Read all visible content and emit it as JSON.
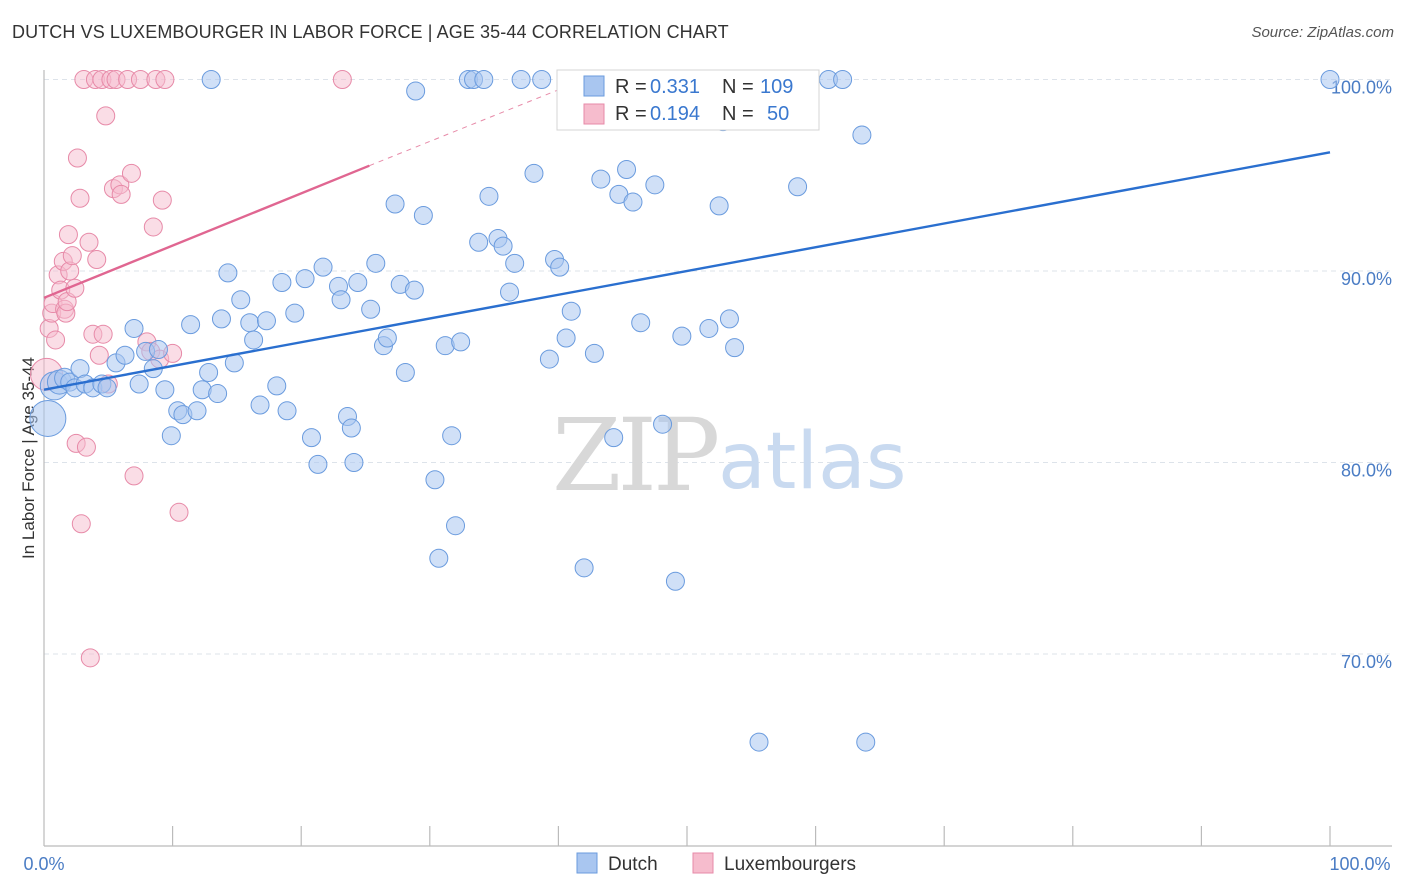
{
  "header": {
    "title": "DUTCH VS LUXEMBOURGER IN LABOR FORCE | AGE 35-44 CORRELATION CHART",
    "source": "Source: ZipAtlas.com"
  },
  "watermark": {
    "zip": "ZIP",
    "atlas": "atlas"
  },
  "colors": {
    "dutch_fill": "#a9c6f0",
    "dutch_stroke": "#6a9bde",
    "dutch_line": "#2a6fcf",
    "lux_fill": "#f6bccd",
    "lux_stroke": "#e78aa8",
    "lux_line": "#e06691",
    "grid": "#dde3ea",
    "axis": "#bbbbbb",
    "tick_text": "#4a7cc4"
  },
  "legend_box": {
    "rows": [
      {
        "r_label": "R =",
        "r_value": "0.331",
        "n_label": "N =",
        "n_value": "109"
      },
      {
        "r_label": "R =",
        "r_value": "0.194",
        "n_label": "N =",
        "n_value": "50"
      }
    ]
  },
  "bottom_legend": {
    "dutch": "Dutch",
    "lux": "Luxembourgers"
  },
  "chart_data": {
    "type": "scatter",
    "title": "DUTCH VS LUXEMBOURGER IN LABOR FORCE | AGE 35-44 CORRELATION CHART",
    "xlabel": "",
    "ylabel": "In Labor Force | Age 35-44",
    "xlim": [
      0,
      100
    ],
    "ylim": [
      61,
      101.5
    ],
    "x_tick_labels": [
      "0.0%",
      "100.0%"
    ],
    "y_ticks": [
      70,
      80,
      90,
      100
    ],
    "y_tick_labels": [
      "70.0%",
      "80.0%",
      "90.0%",
      "100.0%"
    ],
    "grid": true,
    "legend_position": "top-center",
    "series": [
      {
        "name": "Dutch",
        "r": 0.331,
        "n": 109,
        "trend": {
          "x": [
            0,
            100
          ],
          "y": [
            83.8,
            96.2
          ]
        },
        "points": [
          [
            0.3,
            82.3,
            18
          ],
          [
            0.8,
            84.0,
            14
          ],
          [
            1.2,
            84.2,
            12
          ],
          [
            1.6,
            84.4,
            10
          ],
          [
            2.0,
            84.2,
            9
          ],
          [
            2.4,
            83.9,
            9
          ],
          [
            2.8,
            84.9,
            9
          ],
          [
            3.2,
            84.1,
            9
          ],
          [
            3.8,
            83.9,
            9
          ],
          [
            4.5,
            84.1,
            9
          ],
          [
            4.9,
            83.9,
            9
          ],
          [
            5.6,
            85.2,
            9
          ],
          [
            6.3,
            85.6,
            9
          ],
          [
            7.0,
            87.0,
            9
          ],
          [
            7.4,
            84.1,
            9
          ],
          [
            7.9,
            85.8,
            9
          ],
          [
            8.5,
            84.9,
            9
          ],
          [
            8.9,
            85.9,
            9
          ],
          [
            9.4,
            83.8,
            9
          ],
          [
            9.9,
            81.4,
            9
          ],
          [
            10.4,
            82.7,
            9
          ],
          [
            10.8,
            82.5,
            9
          ],
          [
            11.4,
            87.2,
            9
          ],
          [
            11.9,
            82.7,
            9
          ],
          [
            12.3,
            83.8,
            9
          ],
          [
            12.8,
            84.7,
            9
          ],
          [
            13.5,
            83.6,
            9
          ],
          [
            13.8,
            87.5,
            9
          ],
          [
            14.3,
            89.9,
            9
          ],
          [
            14.8,
            85.2,
            9
          ],
          [
            15.3,
            88.5,
            9
          ],
          [
            16.0,
            87.3,
            9
          ],
          [
            16.3,
            86.4,
            9
          ],
          [
            16.8,
            83.0,
            9
          ],
          [
            17.3,
            87.4,
            9
          ],
          [
            18.1,
            84.0,
            9
          ],
          [
            18.5,
            89.4,
            9
          ],
          [
            18.9,
            82.7,
            9
          ],
          [
            19.5,
            87.8,
            9
          ],
          [
            20.3,
            89.6,
            9
          ],
          [
            20.8,
            81.3,
            9
          ],
          [
            21.3,
            79.9,
            9
          ],
          [
            21.7,
            90.2,
            9
          ],
          [
            22.9,
            89.2,
            9
          ],
          [
            23.1,
            88.5,
            9
          ],
          [
            23.6,
            82.4,
            9
          ],
          [
            23.9,
            81.8,
            9
          ],
          [
            24.1,
            80.0,
            9
          ],
          [
            24.4,
            89.4,
            9
          ],
          [
            25.4,
            88.0,
            9
          ],
          [
            25.8,
            90.4,
            9
          ],
          [
            26.4,
            86.1,
            9
          ],
          [
            26.7,
            86.5,
            9
          ],
          [
            27.7,
            89.3,
            9
          ],
          [
            27.3,
            93.5,
            9
          ],
          [
            28.1,
            84.7,
            9
          ],
          [
            28.8,
            89.0,
            9
          ],
          [
            29.5,
            92.9,
            9
          ],
          [
            30.4,
            79.1,
            9
          ],
          [
            30.7,
            75.0,
            9
          ],
          [
            31.2,
            86.1,
            9
          ],
          [
            31.7,
            81.4,
            9
          ],
          [
            32.0,
            76.7,
            9
          ],
          [
            32.4,
            86.3,
            9
          ],
          [
            33.0,
            100.0,
            9
          ],
          [
            33.4,
            100.0,
            9
          ],
          [
            33.8,
            91.5,
            9
          ],
          [
            34.2,
            100.0,
            9
          ],
          [
            34.6,
            93.9,
            9
          ],
          [
            35.3,
            91.7,
            9
          ],
          [
            35.7,
            91.3,
            9
          ],
          [
            36.2,
            88.9,
            9
          ],
          [
            36.6,
            90.4,
            9
          ],
          [
            37.1,
            100.0,
            9
          ],
          [
            38.1,
            95.1,
            9
          ],
          [
            38.7,
            100.0,
            9
          ],
          [
            39.3,
            85.4,
            9
          ],
          [
            39.7,
            90.6,
            9
          ],
          [
            40.1,
            90.2,
            9
          ],
          [
            40.6,
            86.5,
            9
          ],
          [
            41.0,
            87.9,
            9
          ],
          [
            41.4,
            99.2,
            9
          ],
          [
            42.0,
            74.5,
            9
          ],
          [
            42.8,
            85.7,
            9
          ],
          [
            43.3,
            94.8,
            9
          ],
          [
            44.3,
            81.3,
            9
          ],
          [
            44.7,
            94.0,
            9
          ],
          [
            45.3,
            95.3,
            9
          ],
          [
            45.8,
            93.6,
            9
          ],
          [
            46.4,
            87.3,
            9
          ],
          [
            47.5,
            94.5,
            9
          ],
          [
            48.1,
            82.0,
            9
          ],
          [
            49.1,
            73.8,
            9
          ],
          [
            49.6,
            86.6,
            9
          ],
          [
            51.7,
            87.0,
            9
          ],
          [
            52.5,
            93.4,
            9
          ],
          [
            52.8,
            97.8,
            9
          ],
          [
            53.3,
            87.5,
            9
          ],
          [
            53.7,
            86.0,
            9
          ],
          [
            55.6,
            65.4,
            9
          ],
          [
            58.6,
            94.4,
            9
          ],
          [
            61.0,
            100.0,
            9
          ],
          [
            62.1,
            100.0,
            9
          ],
          [
            63.6,
            97.1,
            9
          ],
          [
            63.9,
            65.4,
            9
          ],
          [
            100.0,
            100.0,
            9
          ],
          [
            13.0,
            100.0,
            9
          ],
          [
            28.9,
            99.4,
            9
          ],
          [
            55.0,
            100.0,
            9
          ]
        ]
      },
      {
        "name": "Luxembourgers",
        "r": 0.194,
        "n": 50,
        "trend": {
          "x": [
            0,
            25.3
          ],
          "y": [
            88.6,
            95.5
          ]
        },
        "trend_extension": {
          "x": [
            25.3,
            42.0
          ],
          "y": [
            95.5,
            100.0
          ]
        },
        "points": [
          [
            0.2,
            84.6,
            16
          ],
          [
            0.4,
            87.0,
            9
          ],
          [
            0.6,
            87.8,
            9
          ],
          [
            0.7,
            88.3,
            9
          ],
          [
            0.9,
            86.4,
            9
          ],
          [
            1.1,
            89.8,
            9
          ],
          [
            1.3,
            89.0,
            9
          ],
          [
            1.5,
            90.5,
            9
          ],
          [
            1.6,
            88.0,
            9
          ],
          [
            1.7,
            87.8,
            9
          ],
          [
            1.8,
            88.4,
            9
          ],
          [
            1.9,
            91.9,
            9
          ],
          [
            2.0,
            90.0,
            9
          ],
          [
            2.2,
            90.8,
            9
          ],
          [
            2.4,
            89.1,
            9
          ],
          [
            2.5,
            81.0,
            9
          ],
          [
            2.6,
            95.9,
            9
          ],
          [
            2.8,
            93.8,
            9
          ],
          [
            2.9,
            76.8,
            9
          ],
          [
            3.1,
            100.0,
            9
          ],
          [
            3.3,
            80.8,
            9
          ],
          [
            3.5,
            91.5,
            9
          ],
          [
            3.6,
            69.8,
            9
          ],
          [
            3.8,
            86.7,
            9
          ],
          [
            4.0,
            100.0,
            9
          ],
          [
            4.1,
            90.6,
            9
          ],
          [
            4.3,
            85.6,
            9
          ],
          [
            4.5,
            100.0,
            9
          ],
          [
            4.6,
            86.7,
            9
          ],
          [
            4.8,
            98.1,
            9
          ],
          [
            5.0,
            84.1,
            9
          ],
          [
            5.2,
            100.0,
            9
          ],
          [
            5.4,
            94.3,
            9
          ],
          [
            5.6,
            100.0,
            9
          ],
          [
            5.9,
            94.5,
            9
          ],
          [
            6.0,
            94.0,
            9
          ],
          [
            6.5,
            100.0,
            9
          ],
          [
            6.8,
            95.1,
            9
          ],
          [
            7.0,
            79.3,
            9
          ],
          [
            7.5,
            100.0,
            9
          ],
          [
            8.0,
            86.3,
            9
          ],
          [
            8.3,
            85.8,
            9
          ],
          [
            8.5,
            92.3,
            9
          ],
          [
            8.7,
            100.0,
            9
          ],
          [
            9.0,
            85.4,
            9
          ],
          [
            9.2,
            93.7,
            9
          ],
          [
            9.4,
            100.0,
            9
          ],
          [
            10.0,
            85.7,
            9
          ],
          [
            10.5,
            77.4,
            9
          ],
          [
            23.2,
            100.0,
            9
          ]
        ]
      }
    ]
  }
}
